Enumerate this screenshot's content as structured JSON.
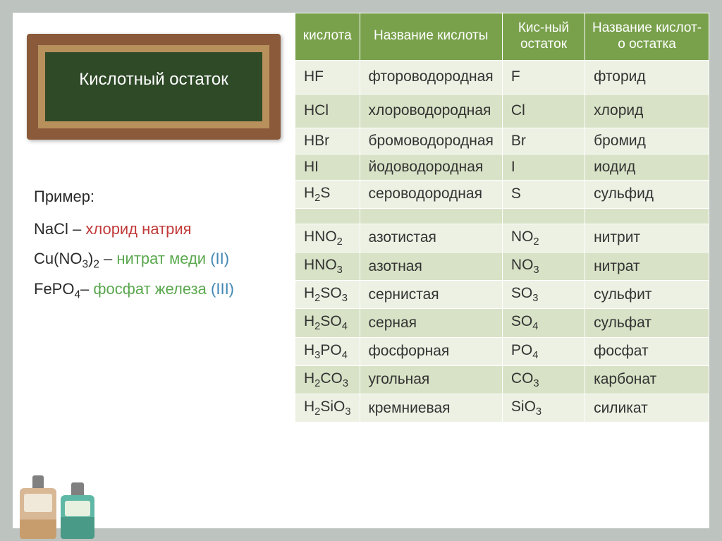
{
  "leftPanel": {
    "chalkboardTitle": "Кислотный остаток",
    "exampleTitle": "Пример:",
    "examples": [
      {
        "formula": "NaCl",
        "sep": " – ",
        "name": "хлорид натрия",
        "roman": "",
        "nameClass": "salt-name1"
      },
      {
        "formula": "Cu(NO₃)₂",
        "sep": " – ",
        "name": "нитрат меди ",
        "roman": "(II)",
        "nameClass": "salt-name2"
      },
      {
        "formula": "FePO₄",
        "sep": "– ",
        "name": "фосфат железа ",
        "roman": "(III)",
        "nameClass": "salt-name2"
      }
    ]
  },
  "table": {
    "headers": [
      "кислота",
      "Название кислоты",
      "Кис-ный остаток",
      "Название кислот-о остатка"
    ],
    "rows": [
      {
        "c": [
          "HF",
          "фтороводородная",
          "F",
          "фторид"
        ],
        "cls": "light hrow"
      },
      {
        "c": [
          "HCl",
          "хлороводородная",
          "Cl",
          "хлорид"
        ],
        "cls": "dark hrow"
      },
      {
        "c": [
          "HBr",
          "бромоводородная",
          "Br",
          "бромид"
        ],
        "cls": "light"
      },
      {
        "c": [
          "HI",
          "йодоводородная",
          "I",
          "иодид"
        ],
        "cls": "dark"
      },
      {
        "c": [
          "H₂S",
          "сероводородная",
          "S",
          "сульфид"
        ],
        "cls": "light"
      },
      {
        "c": [
          "",
          "",
          "",
          ""
        ],
        "cls": "dark empty"
      },
      {
        "c": [
          "HNO₂",
          "азотистая",
          "NO₂",
          "нитрит"
        ],
        "cls": "light"
      },
      {
        "c": [
          "HNO₃",
          "азотная",
          "NO₃",
          "нитрат"
        ],
        "cls": "dark"
      },
      {
        "c": [
          "H₂SO₃",
          "сернистая",
          "SO₃",
          "сульфит"
        ],
        "cls": "light"
      },
      {
        "c": [
          "H₂SO₄",
          "серная",
          "SO₄",
          "сульфат"
        ],
        "cls": "dark"
      },
      {
        "c": [
          "H₃PO₄",
          "фосфорная",
          "PO₄",
          "фосфат"
        ],
        "cls": "light"
      },
      {
        "c": [
          "H₂CO₃",
          "угольная",
          "CO₃",
          "карбонат"
        ],
        "cls": "dark"
      },
      {
        "c": [
          "H₂SiO₃",
          "кремниевая",
          "SiO₃",
          "силикат"
        ],
        "cls": "light"
      }
    ]
  },
  "colors": {
    "headerBg": "#79a14c",
    "rowLight": "#ecf1e3",
    "rowDark": "#d8e2c6",
    "salt1": "#c23a3a",
    "salt2": "#5aa84e",
    "roman": "#4288b4"
  }
}
